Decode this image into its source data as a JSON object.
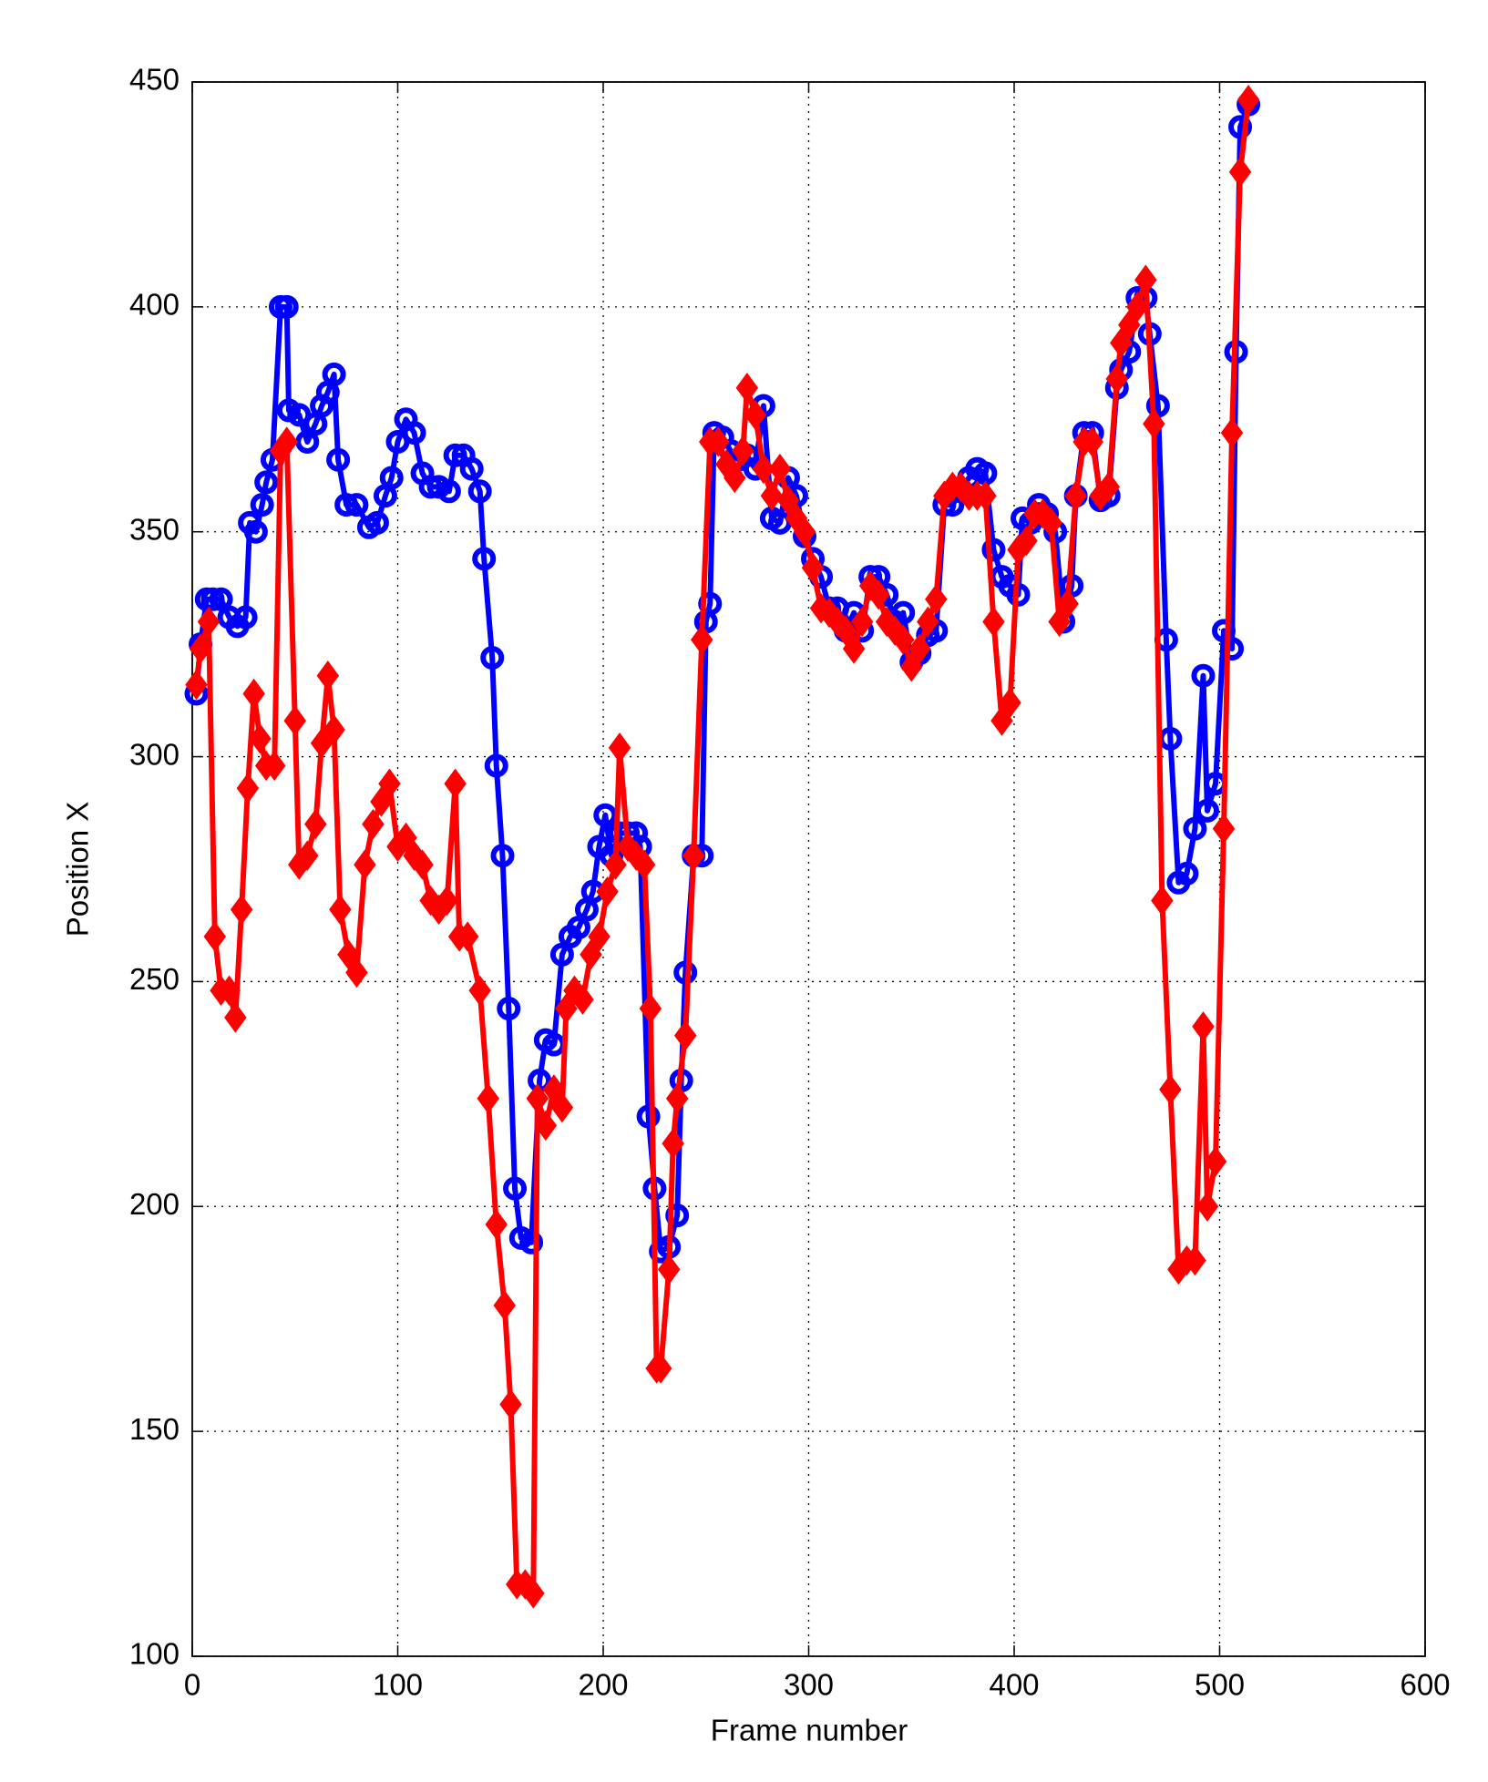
{
  "chart_data": {
    "type": "line",
    "x_label": "Frame number",
    "y_label": "Position X",
    "xlim": [
      0,
      600
    ],
    "xticks": [
      0,
      100,
      200,
      300,
      400,
      500,
      600
    ],
    "ylim": [
      100,
      450
    ],
    "yticks": [
      100,
      150,
      200,
      250,
      300,
      350,
      400,
      450
    ],
    "grid": true,
    "series": [
      {
        "color": "#0000ff",
        "marker": "circle",
        "x": [
          2,
          4,
          7,
          10,
          14,
          18,
          22,
          26,
          28,
          31,
          34,
          36,
          39,
          43,
          46,
          47,
          52,
          56,
          60,
          63,
          66,
          69,
          71,
          75,
          80,
          86,
          90,
          94,
          97,
          100,
          104,
          108,
          112,
          116,
          120,
          125,
          128,
          132,
          136,
          140,
          142,
          146,
          148,
          151,
          154,
          157,
          160,
          165,
          169,
          172,
          176,
          180,
          184,
          188,
          192,
          195,
          198,
          201,
          204,
          208,
          212,
          216,
          218,
          222,
          225,
          228,
          232,
          236,
          238,
          240,
          244,
          248,
          250,
          252,
          254,
          258,
          262,
          266,
          270,
          274,
          278,
          282,
          286,
          290,
          294,
          298,
          302,
          306,
          310,
          314,
          318,
          322,
          326,
          330,
          334,
          338,
          342,
          346,
          350,
          354,
          358,
          362,
          366,
          370,
          374,
          378,
          382,
          386,
          390,
          394,
          398,
          402,
          404,
          408,
          412,
          416,
          420,
          424,
          428,
          430,
          434,
          438,
          442,
          446,
          450,
          452,
          456,
          460,
          464,
          466,
          470,
          474,
          476,
          480,
          484,
          488,
          492,
          494,
          498,
          502,
          506,
          508,
          510,
          514
        ],
        "values": [
          314,
          325,
          335,
          335,
          335,
          331,
          329,
          331,
          352,
          350,
          356,
          361,
          366,
          400,
          400,
          377,
          376,
          370,
          374,
          378,
          381,
          385,
          366,
          356,
          356,
          351,
          352,
          358,
          362,
          370,
          375,
          372,
          363,
          360,
          360,
          359,
          367,
          367,
          364,
          359,
          344,
          322,
          298,
          278,
          244,
          204,
          193,
          192,
          228,
          237,
          236,
          256,
          260,
          262,
          266,
          270,
          280,
          287,
          278,
          283,
          283,
          283,
          280,
          220,
          204,
          190,
          191,
          198,
          228,
          252,
          278,
          278,
          330,
          334,
          372,
          371,
          368,
          366,
          367,
          364,
          378,
          353,
          352,
          362,
          358,
          349,
          344,
          340,
          333,
          333,
          328,
          332,
          328,
          340,
          340,
          336,
          330,
          332,
          321,
          323,
          327,
          328,
          356,
          356,
          359,
          362,
          364,
          363,
          346,
          340,
          338,
          336,
          353,
          352,
          356,
          354,
          350,
          330,
          338,
          358,
          372,
          372,
          357,
          358,
          382,
          386,
          390,
          402,
          402,
          394,
          378,
          326,
          304,
          272,
          274,
          284,
          318,
          288,
          294,
          328,
          324,
          390,
          440,
          445
        ]
      },
      {
        "color": "#ff0000",
        "marker": "diamond",
        "x": [
          2,
          4,
          8,
          11,
          14,
          18,
          21,
          24,
          27,
          30,
          33,
          36,
          40,
          43,
          46,
          50,
          52,
          56,
          60,
          63,
          66,
          69,
          72,
          76,
          80,
          84,
          88,
          92,
          96,
          100,
          104,
          108,
          112,
          116,
          120,
          124,
          128,
          130,
          134,
          140,
          144,
          148,
          152,
          155,
          158,
          162,
          166,
          168,
          172,
          176,
          180,
          182,
          186,
          190,
          194,
          198,
          202,
          206,
          208,
          212,
          216,
          220,
          223,
          226,
          228,
          232,
          234,
          236,
          240,
          244,
          248,
          252,
          256,
          260,
          264,
          268,
          270,
          274,
          278,
          282,
          286,
          290,
          294,
          298,
          302,
          306,
          310,
          314,
          318,
          322,
          326,
          330,
          334,
          338,
          342,
          346,
          350,
          354,
          358,
          362,
          366,
          370,
          374,
          378,
          382,
          386,
          390,
          394,
          398,
          402,
          406,
          410,
          414,
          418,
          422,
          426,
          430,
          434,
          438,
          442,
          446,
          450,
          452,
          456,
          460,
          464,
          468,
          472,
          476,
          480,
          484,
          488,
          492,
          494,
          498,
          502,
          506,
          510,
          514
        ],
        "values": [
          316,
          324,
          330,
          260,
          248,
          248,
          242,
          266,
          293,
          314,
          304,
          298,
          298,
          368,
          370,
          308,
          276,
          278,
          285,
          303,
          318,
          306,
          266,
          256,
          252,
          276,
          285,
          290,
          294,
          280,
          282,
          278,
          276,
          268,
          266,
          268,
          294,
          260,
          260,
          248,
          224,
          196,
          178,
          156,
          116,
          116,
          114,
          224,
          218,
          226,
          222,
          244,
          248,
          246,
          256,
          260,
          270,
          276,
          302,
          280,
          278,
          276,
          244,
          164,
          164,
          186,
          214,
          224,
          238,
          278,
          326,
          370,
          370,
          365,
          362,
          368,
          382,
          376,
          364,
          358,
          364,
          357,
          353,
          350,
          342,
          333,
          332,
          330,
          328,
          324,
          330,
          338,
          336,
          330,
          328,
          326,
          320,
          324,
          330,
          335,
          358,
          360,
          360,
          358,
          358,
          358,
          330,
          308,
          312,
          346,
          348,
          354,
          354,
          352,
          330,
          334,
          358,
          370,
          370,
          358,
          360,
          384,
          392,
          396,
          400,
          406,
          374,
          268,
          226,
          186,
          188,
          188,
          240,
          200,
          210,
          284,
          372,
          430,
          446
        ]
      }
    ]
  }
}
